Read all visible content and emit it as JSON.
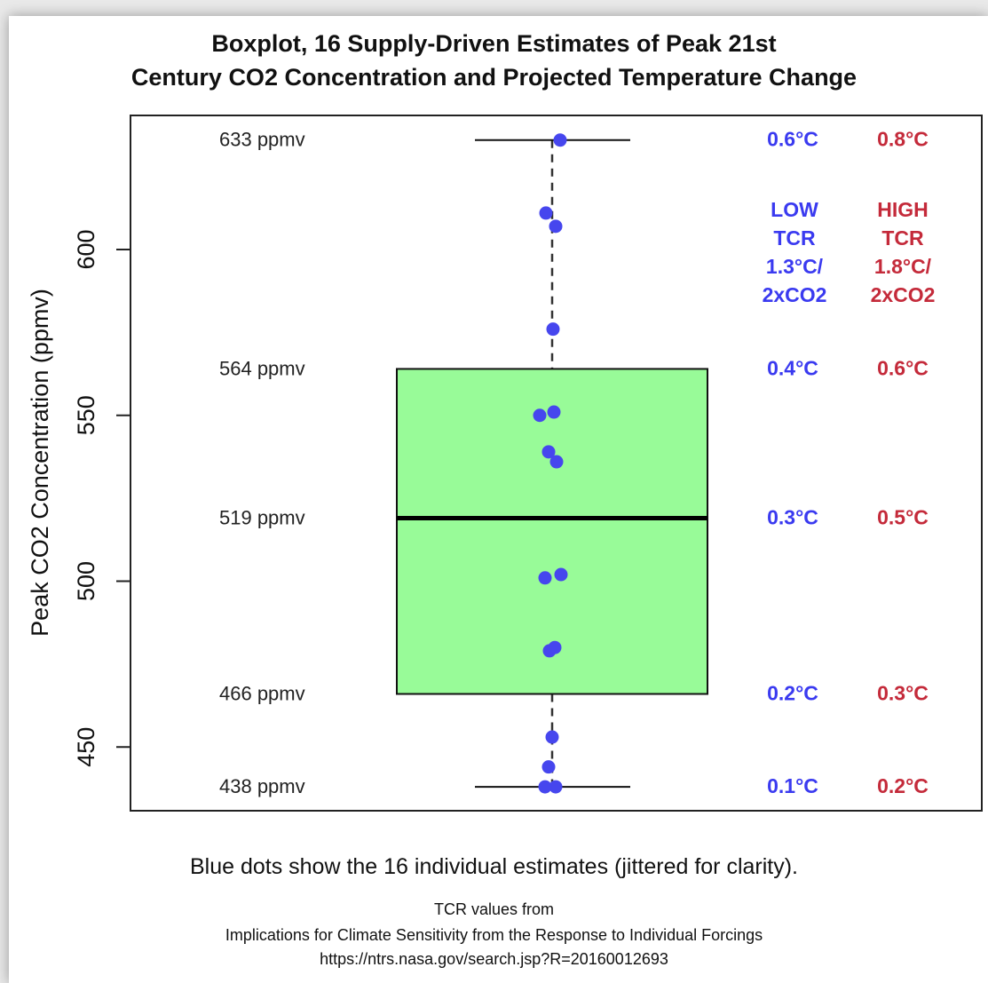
{
  "colors": {
    "box_fill": "#98fb98",
    "dot": "#4646ee",
    "low_tcr": "#3a3af0",
    "high_tcr": "#c42a3a",
    "line": "#111111"
  },
  "chart_data": {
    "type": "boxplot",
    "title": [
      "Boxplot, 16 Supply-Driven Estimates of Peak 21st",
      "Century CO2 Concentration and Projected Temperature Change"
    ],
    "ylabel": "Peak CO2 Concentration (ppmv)",
    "ylim": [
      428,
      637
    ],
    "yticks": [
      450,
      500,
      550,
      600
    ],
    "box": {
      "min": 438,
      "q1": 466,
      "median": 519,
      "q3": 564,
      "max": 633
    },
    "points": [
      633,
      611,
      607,
      576,
      551,
      550,
      539,
      536,
      502,
      501,
      480,
      479,
      453,
      444,
      438,
      438
    ],
    "levels": [
      {
        "ppmv": 633,
        "label": "633 ppmv",
        "low": "0.6°C",
        "high": "0.8°C"
      },
      {
        "ppmv": 564,
        "label": "564 ppmv",
        "low": "0.4°C",
        "high": "0.6°C"
      },
      {
        "ppmv": 519,
        "label": "519 ppmv",
        "low": "0.3°C",
        "high": "0.5°C"
      },
      {
        "ppmv": 466,
        "label": "466 ppmv",
        "low": "0.2°C",
        "high": "0.3°C"
      },
      {
        "ppmv": 438,
        "label": "438 ppmv",
        "low": "0.1°C",
        "high": "0.2°C"
      }
    ],
    "tcr_headers": {
      "low": [
        "LOW",
        "TCR",
        "1.3°C/",
        "2xCO2"
      ],
      "high": [
        "HIGH",
        "TCR",
        "1.8°C/",
        "2xCO2"
      ]
    },
    "captions": {
      "main": "Blue dots show the 16 individual estimates (jittered for clarity).",
      "tcr_source": "TCR values from",
      "paper": "Implications for Climate Sensitivity from the Response to Individual Forcings",
      "url": "https://ntrs.nasa.gov/search.jsp?R=20160012693"
    }
  }
}
